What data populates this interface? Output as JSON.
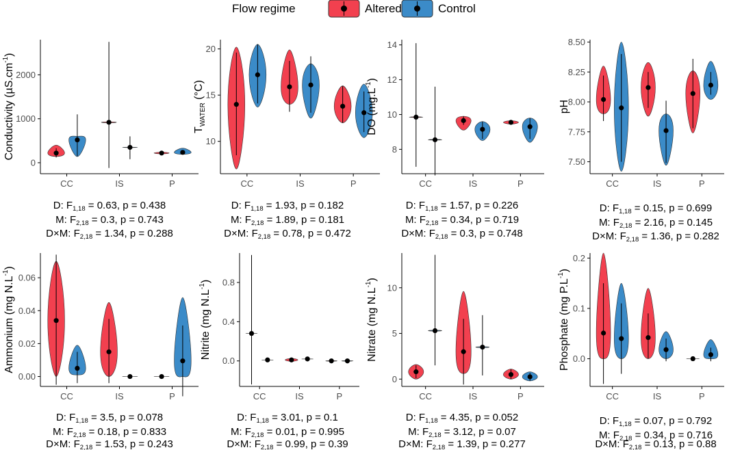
{
  "legend": {
    "title": "Flow regime",
    "items": [
      {
        "label": "Altered",
        "color": "#F2404F"
      },
      {
        "label": "Control",
        "color": "#3B8BC8"
      }
    ]
  },
  "colors": {
    "altered": "#F2404F",
    "control": "#3B8BC8",
    "outline": "#333333",
    "point": "#000000"
  },
  "chart_data": [
    {
      "type": "violin",
      "id": "conductivity",
      "ylabel": "Conductivity (µS.cm",
      "ylabel_sup": "-1",
      "ylabel_tail": ")",
      "ylim": [
        -250,
        2800
      ],
      "yticks": [
        0,
        1000,
        2000
      ],
      "categories": [
        "CC",
        "IS",
        "P"
      ],
      "series": [
        {
          "name": "Altered",
          "mean": [
            220,
            920,
            220
          ],
          "lo": [
            120,
            -120,
            200
          ],
          "hi": [
            330,
            2750,
            240
          ],
          "vmin": [
            140,
            910,
            200
          ],
          "vmax": [
            400,
            930,
            240
          ]
        },
        {
          "name": "Control",
          "mean": [
            520,
            350,
            235
          ],
          "lo": [
            150,
            80,
            200
          ],
          "hi": [
            1100,
            600,
            280
          ],
          "vmin": [
            140,
            345,
            190
          ],
          "vmax": [
            600,
            355,
            330
          ]
        }
      ],
      "stats": [
        {
          "p": "D: F",
          "s": "1,18",
          "t": " = 0.63, p = 0.438"
        },
        {
          "p": "M: F",
          "s": "2,18",
          "t": " = 0.3, p = 0.743"
        },
        {
          "p": "D×M: F",
          "s": "2,18",
          "t": " = 1.34, p = 0.288"
        }
      ]
    },
    {
      "type": "violin",
      "id": "twater",
      "ylabel": "T",
      "ylabel_sub": "WATER",
      "ylabel_tail": "  (°C)",
      "ylim": [
        6.5,
        21
      ],
      "yticks": [
        10,
        15,
        20
      ],
      "categories": [
        "CC",
        "IS",
        "P"
      ],
      "series": [
        {
          "name": "Altered",
          "mean": [
            14,
            15.9,
            13.8
          ],
          "lo": [
            8.5,
            13.2,
            12
          ],
          "hi": [
            19.6,
            18.7,
            16
          ],
          "vmin": [
            7,
            14,
            12
          ],
          "vmax": [
            20.2,
            19.9,
            16
          ]
        },
        {
          "name": "Control",
          "mean": [
            17.2,
            16.1,
            13.1
          ],
          "lo": [
            14.1,
            13.1,
            11
          ],
          "hi": [
            20.5,
            19.2,
            15.4
          ],
          "vmin": [
            13.7,
            12.5,
            10.4
          ],
          "vmax": [
            20.5,
            18.4,
            16.2
          ]
        }
      ],
      "stats": [
        {
          "p": "D: F",
          "s": "1,18",
          "t": " = 1.93, p = 0.182"
        },
        {
          "p": "M: F",
          "s": "2,18",
          "t": " = 1.89, p = 0.181"
        },
        {
          "p": "D×M: F",
          "s": "2,18",
          "t": " = 0.78, p = 0.472"
        }
      ]
    },
    {
      "type": "violin",
      "id": "do",
      "ylabel": "DO (mg.L",
      "ylabel_sup": "-1",
      "ylabel_tail": ")",
      "ylim": [
        6.6,
        14.3
      ],
      "yticks": [
        8,
        10,
        12,
        14
      ],
      "categories": [
        "CC",
        "IS",
        "P"
      ],
      "series": [
        {
          "name": "Altered",
          "mean": [
            9.85,
            9.65,
            9.55
          ],
          "lo": [
            7,
            9.4,
            9.5
          ],
          "hi": [
            14.1,
            9.9,
            9.6
          ],
          "vmin": [
            9.83,
            9.1,
            9.45
          ],
          "vmax": [
            9.87,
            9.9,
            9.65
          ]
        },
        {
          "name": "Control",
          "mean": [
            8.55,
            9.15,
            9.3
          ],
          "lo": [
            6.5,
            8.6,
            8.6
          ],
          "hi": [
            11.6,
            9.6,
            9.8
          ],
          "vmin": [
            8.53,
            8.5,
            8.4
          ],
          "vmax": [
            8.57,
            9.6,
            9.8
          ]
        }
      ],
      "stats": [
        {
          "p": "D: F",
          "s": "1,18",
          "t": " = 1.57, p = 0.226"
        },
        {
          "p": "M: F",
          "s": "2,18",
          "t": " = 0.34, p = 0.719"
        },
        {
          "p": "D×M: F",
          "s": "2,18",
          "t": " = 0.3, p = 0.748"
        }
      ]
    },
    {
      "type": "violin",
      "id": "ph",
      "ylabel": "pH",
      "ylim": [
        7.4,
        8.52
      ],
      "yticks": [
        7.5,
        7.75,
        8.0,
        8.25,
        8.5
      ],
      "ytick_labels": [
        "7.50",
        "7.75",
        "8.00",
        "8.25",
        "8.50"
      ],
      "categories": [
        "CC",
        "IS",
        "P"
      ],
      "series": [
        {
          "name": "Altered",
          "mean": [
            8.02,
            8.12,
            8.07
          ],
          "lo": [
            7.84,
            7.95,
            7.78
          ],
          "hi": [
            8.22,
            8.25,
            8.36
          ],
          "vmin": [
            7.9,
            7.88,
            7.74
          ],
          "vmax": [
            8.3,
            8.33,
            8.26
          ]
        },
        {
          "name": "Control",
          "mean": [
            7.95,
            7.76,
            8.14
          ],
          "lo": [
            7.5,
            7.49,
            8.06
          ],
          "hi": [
            8.4,
            8.01,
            8.25
          ],
          "vmin": [
            7.42,
            7.47,
            8.02
          ],
          "vmax": [
            8.5,
            7.9,
            8.34
          ]
        }
      ],
      "stats": [
        {
          "p": "D: F",
          "s": "1,18",
          "t": " = 0.15, p = 0.699"
        },
        {
          "p": "M: F",
          "s": "2,18",
          "t": " = 2.16, p = 0.145"
        },
        {
          "p": "D×M: F",
          "s": "2,18",
          "t": " = 1.36, p = 0.282"
        }
      ]
    },
    {
      "type": "violin",
      "id": "ammonium",
      "ylabel": "Ammonium (mg N.L",
      "ylabel_sup": "-1",
      "ylabel_tail": ")",
      "ylim": [
        -0.006,
        0.075
      ],
      "yticks": [
        0,
        0.02,
        0.04,
        0.06
      ],
      "ytick_labels": [
        "0.00",
        "0.02",
        "0.04",
        "0.06"
      ],
      "categories": [
        "CC",
        "IS",
        "P"
      ],
      "series": [
        {
          "name": "Altered",
          "mean": [
            0.034,
            0.015,
            0.0
          ],
          "lo": [
            -0.005,
            -0.004,
            0
          ],
          "hi": [
            0.074,
            0.035,
            0
          ],
          "vmin": [
            0,
            0,
            0
          ],
          "vmax": [
            0.07,
            0.045,
            0
          ]
        },
        {
          "name": "Control",
          "mean": [
            0.005,
            0.0,
            0.0095
          ],
          "lo": [
            -0.004,
            0,
            -0.012
          ],
          "hi": [
            0.015,
            0,
            0.031
          ],
          "vmin": [
            0.001,
            0,
            0
          ],
          "vmax": [
            0.019,
            0,
            0.048
          ]
        }
      ],
      "stats": [
        {
          "p": "D: F",
          "s": "1,18",
          "t": " = 3.5, p = 0.078"
        },
        {
          "p": "M: F",
          "s": "2,18",
          "t": " = 0.18, p = 0.833"
        },
        {
          "p": "D×M: F",
          "s": "2,18",
          "t": " = 1.53, p = 0.243"
        }
      ]
    },
    {
      "type": "violin",
      "id": "nitrite",
      "ylabel": "Nitrite (mg N.L",
      "ylabel_sup": "-1",
      "ylabel_tail": ")",
      "ylim": [
        -0.26,
        1.1
      ],
      "yticks": [
        0,
        0.4,
        0.8
      ],
      "ytick_labels": [
        "0.0",
        "0.4",
        "0.8"
      ],
      "categories": [
        "CC",
        "IS",
        "P"
      ],
      "series": [
        {
          "name": "Altered",
          "mean": [
            0.28,
            0.01,
            0.0
          ],
          "lo": [
            -0.24,
            0.0,
            -0.01
          ],
          "hi": [
            1.08,
            0.02,
            0.01
          ],
          "vmin": [
            0.28,
            -0.005,
            -0.003
          ],
          "vmax": [
            0.28,
            0.025,
            0.003
          ]
        },
        {
          "name": "Control",
          "mean": [
            0.01,
            0.02,
            0.0
          ],
          "lo": [
            0.0,
            0.01,
            -0.01
          ],
          "hi": [
            0.02,
            0.03,
            0.01
          ],
          "vmin": [
            0.01,
            0.02,
            -0.003
          ],
          "vmax": [
            0.01,
            0.02,
            0.003
          ]
        }
      ],
      "stats": [
        {
          "p": "D: F",
          "s": "1,18",
          "t": " = 3.01, p = 0.1"
        },
        {
          "p": "M: F",
          "s": "2,18",
          "t": " = 0.01, p = 0.995"
        },
        {
          "p": "D×M: F",
          "s": "2,18",
          "t": " = 0.99, p = 0.39"
        }
      ]
    },
    {
      "type": "violin",
      "id": "nitrate",
      "ylabel": "Nitrate (mg N.L",
      "ylabel_sup": "-1",
      "ylabel_tail": ")",
      "ylim": [
        -0.8,
        13.8
      ],
      "yticks": [
        0,
        5,
        10
      ],
      "categories": [
        "CC",
        "IS",
        "P"
      ],
      "series": [
        {
          "name": "Altered",
          "mean": [
            0.8,
            3.0,
            0.5
          ],
          "lo": [
            0.1,
            -0.6,
            0.0
          ],
          "hi": [
            1.5,
            6.6,
            1.1
          ],
          "vmin": [
            0.0,
            0.6,
            0.0
          ],
          "vmax": [
            1.6,
            9.6,
            1.1
          ]
        },
        {
          "name": "Control",
          "mean": [
            5.3,
            3.5,
            0.25
          ],
          "lo": [
            1.5,
            0.4,
            -0.2
          ],
          "hi": [
            13.6,
            7.0,
            0.7
          ],
          "vmin": [
            5.25,
            3.45,
            -0.2
          ],
          "vmax": [
            5.35,
            3.55,
            0.8
          ]
        }
      ],
      "stats": [
        {
          "p": "D: F",
          "s": "1,18",
          "t": " = 4.35, p = 0.052"
        },
        {
          "p": "M: F",
          "s": "2,18",
          "t": " = 3.12, p = 0.07"
        },
        {
          "p": "D×M: F",
          "s": "2,18",
          "t": " = 1.39, p = 0.277"
        }
      ]
    },
    {
      "type": "violin",
      "id": "phosphate",
      "ylabel": "Phosphate (mg P.L",
      "ylabel_sup": "-1",
      "ylabel_tail": ")",
      "ylim": [
        -0.055,
        0.21
      ],
      "yticks": [
        0,
        0.1,
        0.2
      ],
      "ytick_labels": [
        "0.0",
        "0.1",
        "0.2"
      ],
      "categories": [
        "CC",
        "IS",
        "P"
      ],
      "series": [
        {
          "name": "Altered",
          "mean": [
            0.051,
            0.042,
            0.0
          ],
          "lo": [
            -0.05,
            0.0,
            0
          ],
          "hi": [
            0.15,
            0.09,
            0
          ],
          "vmin": [
            0.0,
            0.0,
            0
          ],
          "vmax": [
            0.21,
            0.14,
            0
          ]
        },
        {
          "name": "Control",
          "mean": [
            0.04,
            0.018,
            0.008
          ],
          "lo": [
            -0.03,
            -0.005,
            -0.005
          ],
          "hi": [
            0.11,
            0.04,
            0.022
          ],
          "vmin": [
            0.0,
            0.0,
            0.0
          ],
          "vmax": [
            0.15,
            0.054,
            0.038
          ]
        }
      ],
      "stats": [
        {
          "p": "D: F",
          "s": "1,18",
          "t": " = 0.07, p = 0.792"
        },
        {
          "p": "M: F",
          "s": "2,18",
          "t": " = 0.34, p = 0.716"
        },
        {
          "p": "D×M: F",
          "s": "2,18",
          "t": " = 0.13, p = 0.88"
        }
      ]
    }
  ]
}
